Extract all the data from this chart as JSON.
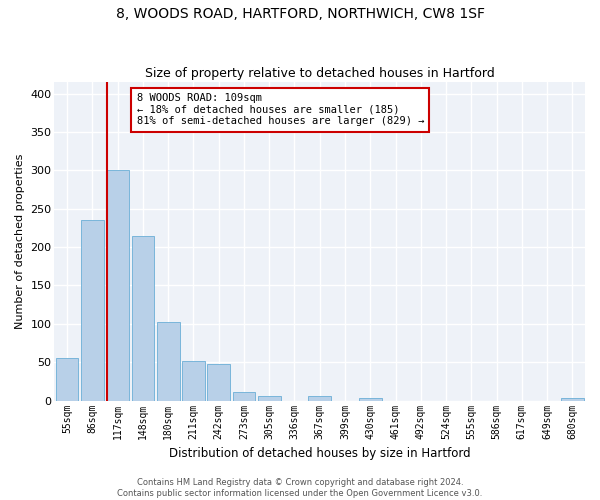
{
  "title1": "8, WOODS ROAD, HARTFORD, NORTHWICH, CW8 1SF",
  "title2": "Size of property relative to detached houses in Hartford",
  "xlabel": "Distribution of detached houses by size in Hartford",
  "ylabel": "Number of detached properties",
  "bin_labels": [
    "55sqm",
    "86sqm",
    "117sqm",
    "148sqm",
    "180sqm",
    "211sqm",
    "242sqm",
    "273sqm",
    "305sqm",
    "336sqm",
    "367sqm",
    "399sqm",
    "430sqm",
    "461sqm",
    "492sqm",
    "524sqm",
    "555sqm",
    "586sqm",
    "617sqm",
    "649sqm",
    "680sqm"
  ],
  "bar_values": [
    55,
    235,
    300,
    215,
    103,
    52,
    48,
    11,
    6,
    0,
    6,
    0,
    3,
    0,
    0,
    0,
    0,
    0,
    0,
    0,
    3
  ],
  "bar_color": "#b8d0e8",
  "bar_edge_color": "#6aaed6",
  "vline_color": "#cc0000",
  "vline_x_index": 1.575,
  "ylim": [
    0,
    415
  ],
  "yticks": [
    0,
    50,
    100,
    150,
    200,
    250,
    300,
    350,
    400
  ],
  "annotation_title": "8 WOODS ROAD: 109sqm",
  "annotation_line1": "← 18% of detached houses are smaller (185)",
  "annotation_line2": "81% of semi-detached houses are larger (829) →",
  "annotation_box_color": "#cc0000",
  "footer1": "Contains HM Land Registry data © Crown copyright and database right 2024.",
  "footer2": "Contains public sector information licensed under the Open Government Licence v3.0.",
  "bg_color": "#eef2f8",
  "grid_color": "#ffffff",
  "title1_fontsize": 10,
  "title2_fontsize": 9
}
